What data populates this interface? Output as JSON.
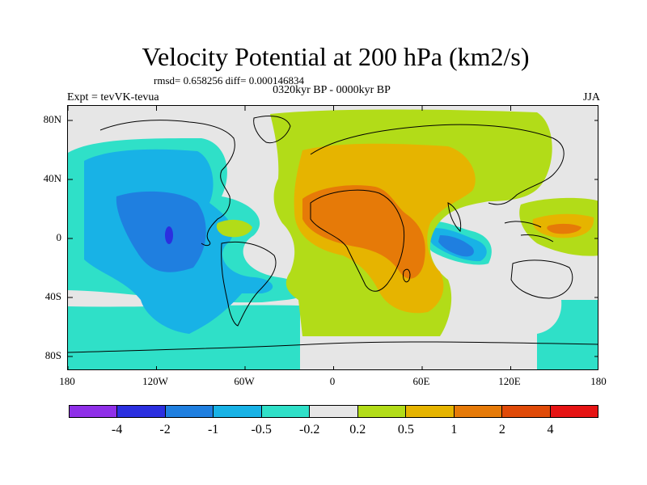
{
  "title": "Velocity Potential at 200 hPa (km2/s)",
  "stats": "rmsd= 0.658256 diff= 0.000146834",
  "period": "0320kyr BP - 0000kyr BP",
  "experiment": "Expt = tevVK-tevua",
  "season": "JJA",
  "map": {
    "projection": "cylindrical equidistant",
    "lon_range": [
      -180,
      180
    ],
    "lat_range": [
      -90,
      90
    ],
    "lat_labels": [
      "80N",
      "40N",
      "0",
      "40S",
      "80S"
    ],
    "lon_labels": [
      "180",
      "120W",
      "60W",
      "0",
      "60E",
      "120E",
      "180"
    ],
    "background_fill": "#e6e6e6"
  },
  "colorbar": {
    "colors": [
      "#8f2fe8",
      "#2b2fe0",
      "#1f7fe0",
      "#18b2e6",
      "#2fe0c8",
      "#e6e6e6",
      "#b2dc18",
      "#e6b400",
      "#e67a08",
      "#e04a08",
      "#e61414"
    ],
    "labels": [
      "-4",
      "-2",
      "-1",
      "-0.5",
      "-0.2",
      "0.2",
      "0.5",
      "1",
      "2",
      "4"
    ]
  }
}
